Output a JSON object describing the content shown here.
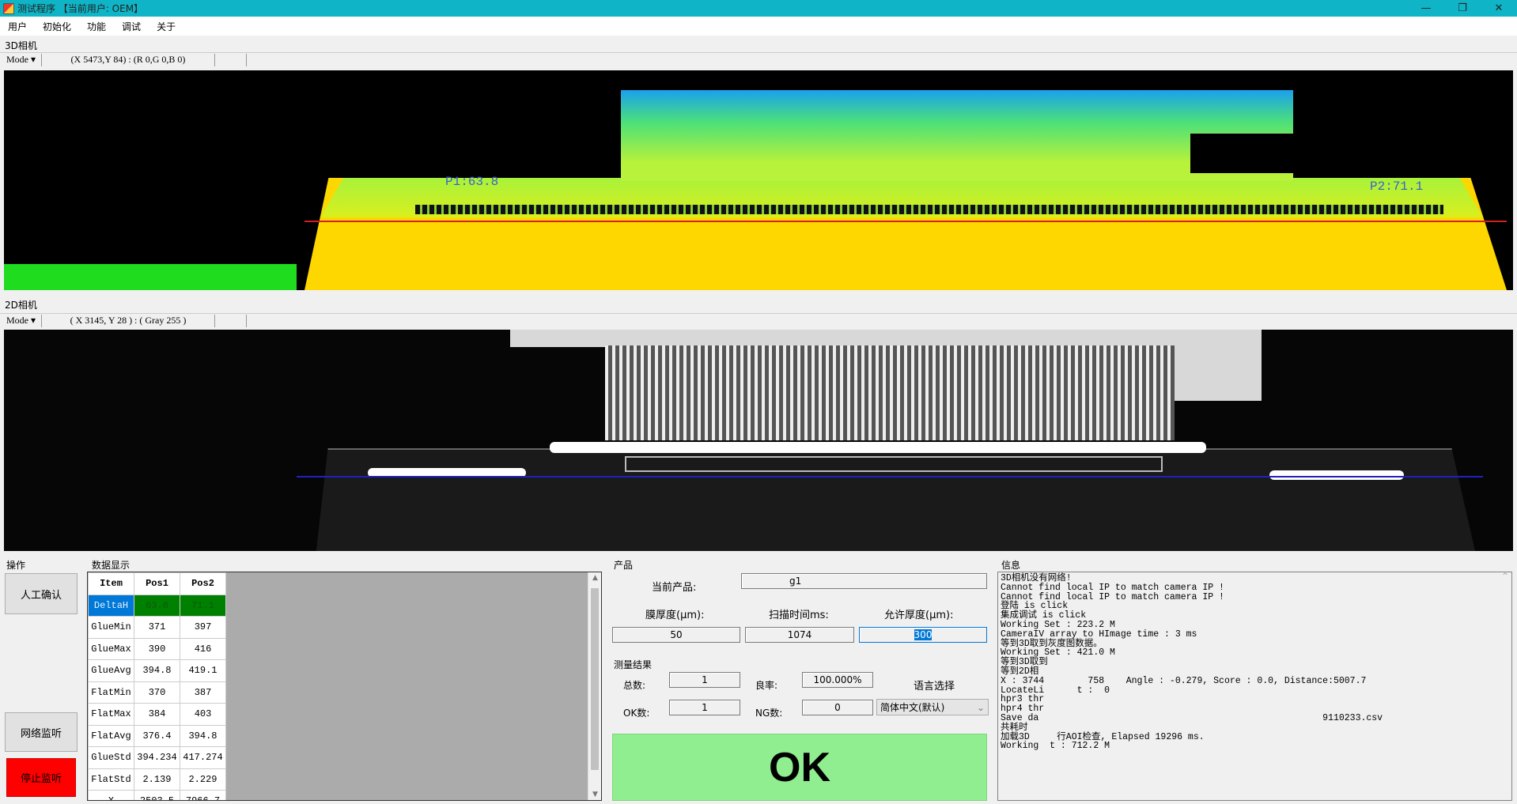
{
  "window": {
    "title": "测试程序 【当前用户: OEM】",
    "controls": [
      "—",
      "❐",
      "✕"
    ]
  },
  "menu": [
    "用户",
    "初始化",
    "功能",
    "调试",
    "关于"
  ],
  "camera3d": {
    "label": "3D相机",
    "mode": "Mode ▾",
    "coord": "(X 5473,Y 84) : (R 0,G 0,B 0)",
    "p1": "P1:63.8",
    "p2": "P2:71.1"
  },
  "camera2d": {
    "label": "2D相机",
    "mode": "Mode ▾",
    "coord": "( X 3145, Y 28 ) : ( Gray 255 )"
  },
  "ops": {
    "label": "操作",
    "manual_confirm": "人工确认",
    "net_listen": "网络监听",
    "stop_listen": "停止监听",
    "stop_color": "#ff0000"
  },
  "data_display": {
    "label": "数据显示",
    "headers": [
      "Item",
      "Pos1",
      "Pos2"
    ],
    "rows": [
      [
        "DeltaH",
        "63.8",
        "71.1"
      ],
      [
        "GlueMin",
        "371",
        "397"
      ],
      [
        "GlueMax",
        "390",
        "416"
      ],
      [
        "GlueAvg",
        "394.8",
        "419.1"
      ],
      [
        "FlatMin",
        "370",
        "387"
      ],
      [
        "FlatMax",
        "384",
        "403"
      ],
      [
        "FlatAvg",
        "376.4",
        "394.8"
      ],
      [
        "GlueStd",
        "394.234",
        "417.274"
      ],
      [
        "FlatStd",
        "2.139",
        "2.229"
      ],
      [
        "X",
        "2503.5",
        "7966.7"
      ]
    ]
  },
  "product": {
    "label": "产品",
    "current_label": "当前产品:",
    "current_value": "g1",
    "film_label": "膜厚度(μm):",
    "film_value": "50",
    "scan_label": "扫描时间ms:",
    "scan_value": "1074",
    "allow_label": "允许厚度(μm):",
    "allow_value": "300"
  },
  "results": {
    "label": "测量结果",
    "total_label": "总数:",
    "total": "1",
    "yield_label": "良率:",
    "yield": "100.000%",
    "ok_label": "OK数:",
    "ok": "1",
    "ng_label": "NG数:",
    "ng": "0",
    "lang_label": "语言选择",
    "lang_value": "简体中文(默认)"
  },
  "verdict": {
    "text": "OK",
    "color": "#90ee90"
  },
  "info": {
    "label": "信息",
    "lines": [
      "3D相机没有网络!",
      "Cannot find local IP to match camera IP !",
      "Cannot find local IP to match camera IP !",
      "登陆 is click",
      "集成调试 is click",
      "Working Set : 223.2 M",
      "CameraIV array to HImage time : 3 ms",
      "等到3D取到灰度图数据。",
      "Working Set : 421.0 M",
      "等到3D取到",
      "等到2D相",
      "X : 3744        758    Angle : -0.279, Score : 0.0, Distance:5007.7",
      "LocateLi      t :  0",
      "hpr3 thr",
      "hpr4 thr",
      "Save da                                                    9110233.csv",
      "共耗时",
      "加载3D     行AOI检查, Elapsed 19296 ms.",
      "Working  t : 712.2 M"
    ]
  }
}
